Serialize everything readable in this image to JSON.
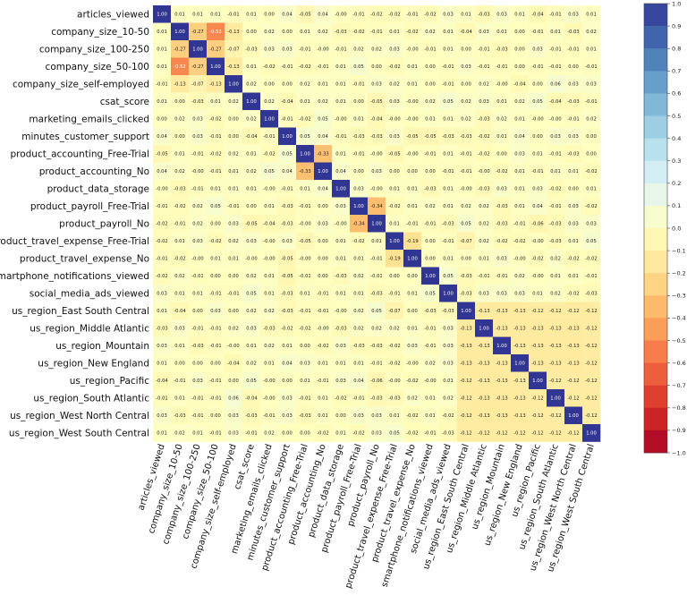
{
  "chart_data": {
    "type": "heatmap",
    "title": "",
    "labels": [
      "articles_viewed",
      "company_size_10-50",
      "company_size_100-250",
      "company_size_50-100",
      "company_size_self-employed",
      "csat_score",
      "marketing_emails_clicked",
      "minutes_customer_support",
      "product_accounting_Free-Trial",
      "product_accounting_No",
      "product_data_storage",
      "product_payroll_Free-Trial",
      "product_payroll_No",
      "product_travel_expense_Free-Trial",
      "product_travel_expense_No",
      "smartphone_notifications_viewed",
      "social_media_ads_viewed",
      "us_region_East South Central",
      "us_region_Middle Atlantic",
      "us_region_Mountain",
      "us_region_New England",
      "us_region_Pacific",
      "us_region_South Atlantic",
      "us_region_West North Central",
      "us_region_West South Central"
    ],
    "matrix": [
      [
        1.0,
        0.01,
        0.01,
        0.01,
        -0.01,
        0.01,
        0.0,
        0.04,
        -0.05,
        0.04,
        -0.0,
        -0.01,
        -0.02,
        -0.02,
        -0.01,
        -0.02,
        0.03,
        0.01,
        -0.03,
        0.03,
        0.01,
        -0.04,
        -0.01,
        0.03,
        0.01
      ],
      [
        0.01,
        1.0,
        -0.27,
        -0.52,
        -0.13,
        0.0,
        0.02,
        0.0,
        0.01,
        0.02,
        -0.03,
        -0.02,
        -0.01,
        0.01,
        -0.02,
        0.02,
        0.01,
        -0.04,
        0.03,
        0.01,
        0.0,
        -0.01,
        0.01,
        -0.03,
        0.02
      ],
      [
        0.01,
        -0.27,
        1.0,
        -0.27,
        -0.07,
        -0.03,
        0.03,
        0.03,
        -0.01,
        -0.0,
        -0.01,
        0.02,
        0.02,
        0.03,
        -0.0,
        -0.01,
        0.01,
        0.0,
        -0.01,
        -0.03,
        0.0,
        0.03,
        -0.01,
        -0.01,
        0.01
      ],
      [
        0.01,
        -0.52,
        -0.27,
        1.0,
        -0.13,
        0.01,
        -0.02,
        -0.01,
        -0.02,
        -0.01,
        0.01,
        0.05,
        0.0,
        -0.02,
        0.01,
        0.0,
        -0.01,
        0.03,
        -0.01,
        -0.01,
        0.0,
        -0.01,
        -0.01,
        0.0,
        -0.01
      ],
      [
        -0.01,
        -0.13,
        -0.07,
        -0.13,
        1.0,
        0.02,
        0.0,
        0.0,
        0.02,
        0.01,
        0.01,
        -0.01,
        0.03,
        0.02,
        0.01,
        0.0,
        -0.01,
        0.0,
        0.02,
        -0.0,
        -0.04,
        0.0,
        0.06,
        0.03,
        0.03
      ],
      [
        0.01,
        0.0,
        -0.03,
        0.01,
        0.02,
        1.0,
        0.02,
        -0.04,
        0.01,
        0.02,
        0.01,
        0.0,
        -0.05,
        0.03,
        -0.0,
        0.02,
        0.05,
        0.02,
        0.03,
        0.01,
        0.02,
        0.05,
        -0.04,
        -0.03,
        -0.01
      ],
      [
        0.0,
        0.02,
        0.03,
        -0.02,
        0.0,
        0.02,
        1.0,
        -0.01,
        -0.02,
        0.05,
        -0.0,
        0.01,
        -0.04,
        -0.0,
        -0.0,
        0.01,
        0.01,
        0.02,
        -0.03,
        0.02,
        0.01,
        -0.0,
        -0.0,
        -0.01,
        0.02
      ],
      [
        0.04,
        0.0,
        0.03,
        -0.01,
        0.0,
        -0.04,
        -0.01,
        1.0,
        0.05,
        0.04,
        -0.01,
        -0.03,
        -0.03,
        0.03,
        -0.05,
        -0.05,
        -0.03,
        -0.03,
        -0.02,
        0.01,
        0.04,
        0.0,
        0.03,
        0.03,
        0.0
      ],
      [
        -0.05,
        0.01,
        -0.01,
        -0.02,
        0.02,
        0.01,
        -0.02,
        0.05,
        1.0,
        -0.33,
        0.01,
        -0.01,
        -0.0,
        -0.05,
        -0.0,
        -0.01,
        0.01,
        -0.01,
        -0.02,
        0.0,
        0.03,
        0.01,
        -0.01,
        -0.03,
        0.0
      ],
      [
        0.04,
        0.02,
        -0.0,
        -0.01,
        0.01,
        0.02,
        0.05,
        0.04,
        -0.33,
        1.0,
        0.04,
        0.0,
        0.03,
        0.0,
        0.0,
        0.0,
        -0.01,
        -0.01,
        -0.0,
        -0.02,
        0.01,
        -0.01,
        0.01,
        0.01,
        -0.02
      ],
      [
        -0.0,
        -0.03,
        -0.01,
        0.01,
        0.01,
        0.01,
        -0.0,
        -0.01,
        0.01,
        0.04,
        1.0,
        0.03,
        -0.0,
        0.01,
        0.01,
        -0.03,
        0.01,
        -0.0,
        -0.03,
        0.03,
        0.01,
        0.03,
        -0.02,
        0.0,
        0.01
      ],
      [
        -0.01,
        -0.02,
        0.02,
        0.05,
        -0.01,
        0.0,
        0.01,
        -0.03,
        -0.01,
        0.0,
        0.03,
        1.0,
        -0.34,
        -0.02,
        0.01,
        0.02,
        0.01,
        0.02,
        0.02,
        -0.03,
        0.01,
        0.04,
        -0.01,
        0.03,
        -0.02
      ],
      [
        -0.02,
        -0.01,
        0.02,
        0.0,
        0.03,
        -0.05,
        -0.04,
        -0.03,
        -0.0,
        0.03,
        -0.0,
        -0.34,
        1.0,
        0.01,
        -0.01,
        -0.01,
        -0.03,
        0.05,
        0.02,
        -0.03,
        -0.01,
        -0.06,
        -0.03,
        0.03,
        0.03
      ],
      [
        -0.02,
        0.01,
        0.03,
        -0.02,
        0.02,
        0.03,
        -0.0,
        0.03,
        -0.05,
        0.0,
        0.01,
        -0.02,
        0.01,
        1.0,
        -0.19,
        0.0,
        -0.01,
        -0.07,
        0.02,
        -0.02,
        -0.02,
        -0.0,
        -0.03,
        0.01,
        0.05
      ],
      [
        -0.01,
        -0.02,
        -0.0,
        0.01,
        0.01,
        -0.0,
        -0.0,
        -0.05,
        -0.0,
        0.0,
        0.01,
        0.01,
        -0.01,
        -0.19,
        1.0,
        0.0,
        0.01,
        0.0,
        0.01,
        0.03,
        -0.0,
        -0.02,
        0.02,
        -0.02,
        -0.02
      ],
      [
        -0.02,
        0.02,
        -0.01,
        0.0,
        0.0,
        0.02,
        0.01,
        -0.05,
        -0.01,
        0.0,
        -0.03,
        0.02,
        -0.01,
        0.0,
        0.0,
        1.0,
        0.05,
        -0.03,
        -0.01,
        -0.01,
        0.02,
        -0.0,
        0.01,
        0.01,
        -0.01
      ],
      [
        0.03,
        0.01,
        0.01,
        -0.01,
        -0.01,
        0.05,
        0.01,
        -0.03,
        0.01,
        -0.01,
        0.01,
        0.01,
        -0.03,
        -0.01,
        0.01,
        0.05,
        1.0,
        -0.03,
        0.03,
        0.03,
        0.03,
        0.01,
        0.02,
        -0.02,
        -0.03
      ],
      [
        0.01,
        -0.04,
        0.0,
        0.03,
        0.0,
        0.02,
        0.02,
        -0.03,
        -0.01,
        -0.01,
        -0.0,
        0.02,
        0.05,
        -0.07,
        0.0,
        -0.03,
        -0.03,
        1.0,
        -0.13,
        -0.13,
        -0.13,
        -0.12,
        -0.12,
        -0.12,
        -0.12
      ],
      [
        -0.03,
        0.03,
        -0.01,
        -0.01,
        0.02,
        0.03,
        -0.03,
        -0.02,
        -0.02,
        -0.0,
        -0.03,
        0.02,
        0.02,
        0.02,
        0.01,
        -0.01,
        0.03,
        -0.13,
        1.0,
        -0.13,
        -0.13,
        -0.13,
        -0.13,
        -0.13,
        -0.12
      ],
      [
        0.03,
        0.01,
        -0.03,
        -0.01,
        -0.0,
        0.01,
        0.02,
        0.01,
        0.0,
        -0.02,
        0.03,
        -0.03,
        -0.03,
        -0.02,
        0.03,
        -0.01,
        0.03,
        -0.13,
        -0.13,
        1.0,
        -0.13,
        -0.13,
        -0.13,
        -0.13,
        -0.12
      ],
      [
        0.01,
        0.0,
        0.0,
        0.0,
        -0.04,
        0.02,
        0.01,
        0.04,
        0.03,
        0.01,
        0.01,
        0.01,
        -0.01,
        -0.02,
        -0.0,
        0.02,
        0.03,
        -0.13,
        -0.13,
        -0.13,
        1.0,
        -0.13,
        -0.13,
        -0.13,
        -0.12
      ],
      [
        -0.04,
        -0.01,
        0.03,
        -0.01,
        0.0,
        0.05,
        -0.0,
        0.0,
        0.01,
        -0.01,
        0.03,
        0.04,
        -0.06,
        -0.0,
        -0.02,
        -0.0,
        0.01,
        -0.12,
        -0.13,
        -0.13,
        -0.13,
        1.0,
        -0.12,
        -0.12,
        -0.12
      ],
      [
        -0.01,
        0.01,
        -0.01,
        -0.01,
        0.06,
        -0.04,
        -0.0,
        0.03,
        -0.01,
        0.01,
        -0.02,
        -0.01,
        -0.03,
        -0.03,
        0.02,
        0.01,
        0.02,
        -0.12,
        -0.13,
        -0.13,
        -0.13,
        -0.12,
        1.0,
        -0.12,
        -0.12
      ],
      [
        0.03,
        -0.03,
        -0.01,
        0.0,
        0.03,
        -0.03,
        -0.01,
        0.03,
        -0.03,
        0.01,
        0.0,
        0.03,
        0.03,
        0.01,
        -0.02,
        0.01,
        -0.02,
        -0.12,
        -0.13,
        -0.13,
        -0.13,
        -0.12,
        -0.12,
        1.0,
        -0.12
      ],
      [
        0.01,
        0.02,
        0.01,
        -0.01,
        0.03,
        -0.01,
        0.02,
        0.0,
        0.0,
        -0.02,
        0.01,
        -0.02,
        0.03,
        0.05,
        -0.02,
        -0.01,
        -0.03,
        -0.12,
        -0.12,
        -0.12,
        -0.12,
        -0.12,
        -0.12,
        -0.12,
        1.0
      ]
    ],
    "value_range": [
      -1.0,
      1.0
    ],
    "colorbar": {
      "ticks": [
        1.0,
        0.9,
        0.8,
        0.7,
        0.6,
        0.5,
        0.4,
        0.3,
        0.2,
        0.1,
        0.0,
        -0.1,
        -0.2,
        -0.3,
        -0.4,
        -0.5,
        -0.6,
        -0.7,
        -0.8,
        -0.9,
        -1.0
      ],
      "tick_labels": [
        "1.0",
        "0.9",
        "0.8",
        "0.7",
        "0.6",
        "0.5",
        "0.4",
        "0.3",
        "0.2",
        "0.1",
        "0.0",
        "−0.1",
        "−0.2",
        "−0.3",
        "−0.4",
        "−0.5",
        "−0.6",
        "−0.7",
        "−0.8",
        "−0.9",
        "−1.0"
      ],
      "colormap": "RdYlBu",
      "levels": 20,
      "placement": "right"
    },
    "colors": [
      "#a50026",
      "#d73027",
      "#f46d43",
      "#fdae61",
      "#fee090",
      "#ffffbf",
      "#e0f3f8",
      "#abd9e9",
      "#74add1",
      "#4575b4",
      "#313695"
    ],
    "grid": false,
    "legend": "colorbar-right"
  }
}
